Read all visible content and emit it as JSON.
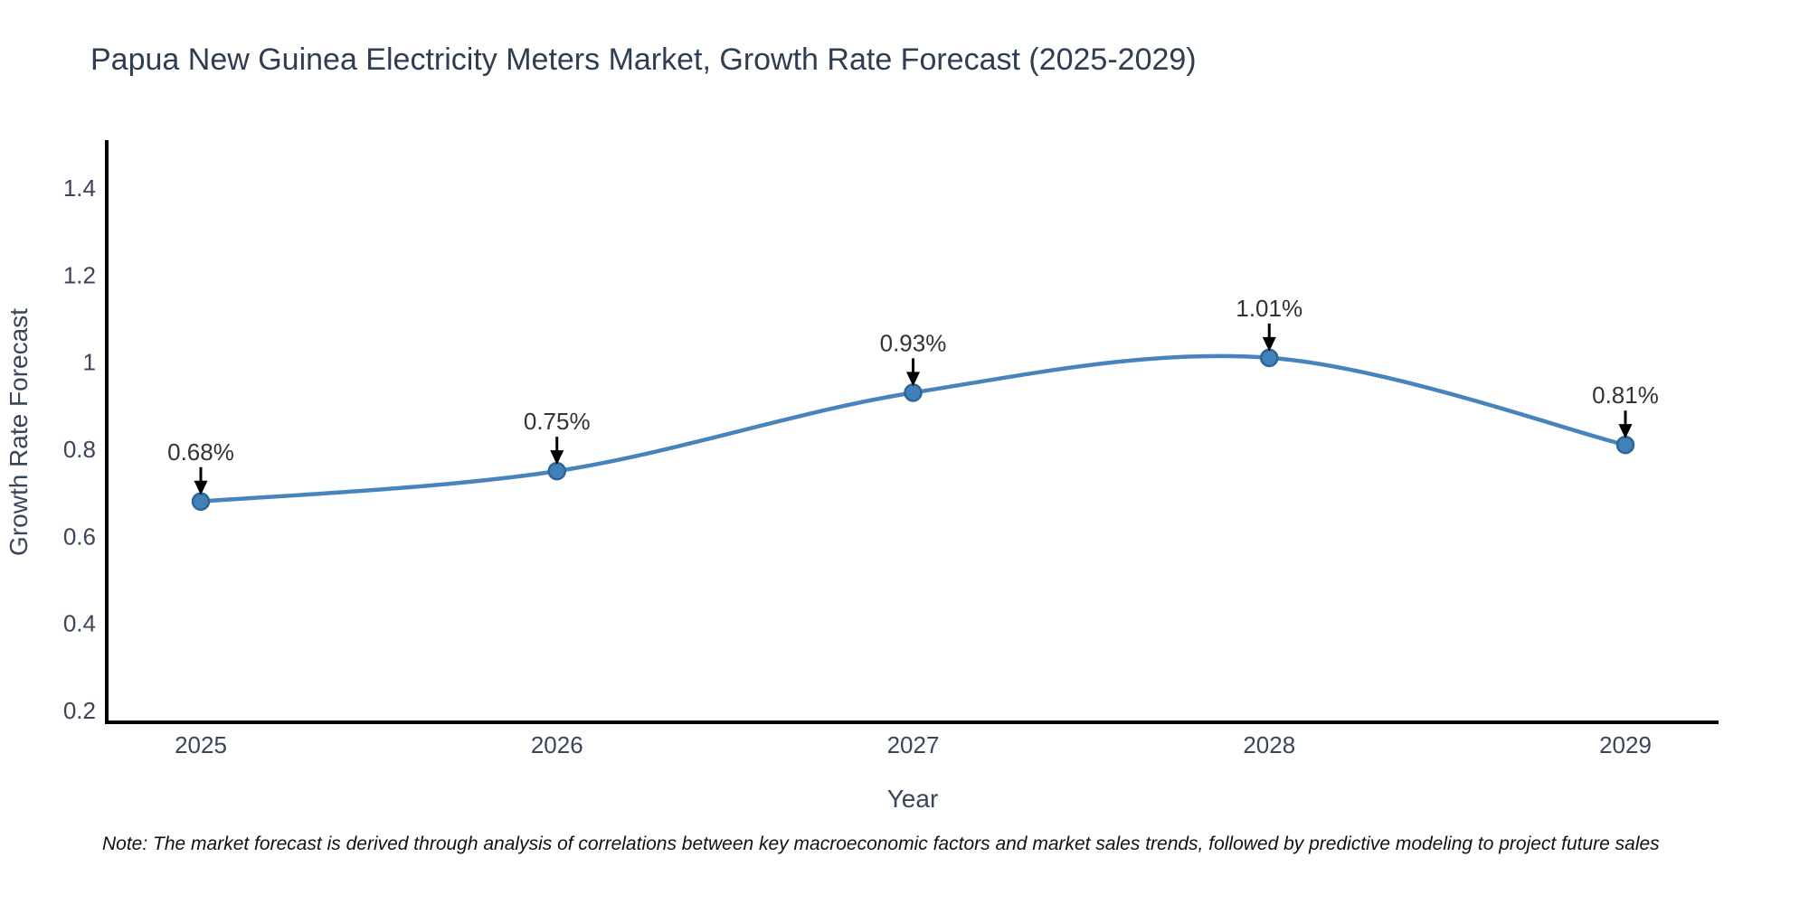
{
  "note": "Note: The market forecast is derived through analysis of correlations between key macroeconomic factors and market sales trends, followed by predictive modeling to project future sales",
  "chart_data": {
    "type": "line",
    "title": "Papua New Guinea Electricity Meters Market, Growth Rate Forecast (2025-2029)",
    "xlabel": "Year",
    "ylabel": "Growth Rate Forecast",
    "x": [
      "2025",
      "2026",
      "2027",
      "2028",
      "2029"
    ],
    "values": [
      0.68,
      0.75,
      0.93,
      1.01,
      0.81
    ],
    "point_labels": [
      "0.68%",
      "0.75%",
      "0.93%",
      "1.01%",
      "0.81%"
    ],
    "ytick_values": [
      1.4,
      1.2,
      1.0,
      0.8,
      0.6,
      0.4,
      0.2
    ],
    "ytick_labels": [
      "1.4",
      "1.2",
      "1",
      "0.8",
      "0.6",
      "0.4",
      "0.2"
    ],
    "ylim": [
      0.17,
      1.5
    ],
    "grid": false,
    "legend": "none",
    "annotation_style": "black arrow pointing down to each marker",
    "colors": {
      "line": "#4684bb",
      "marker_fill": "#4181b8",
      "marker_edge": "#2e6496",
      "axis_line": "#000000",
      "title_text": "#2e3d52",
      "tick_text": "#3a4559",
      "annotation_text": "#333333",
      "arrow": "#000000",
      "note_text": "#111111",
      "background": "#ffffff"
    }
  }
}
